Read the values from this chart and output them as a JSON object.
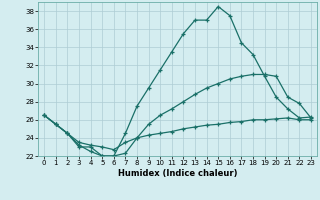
{
  "xlabel": "Humidex (Indice chaleur)",
  "bg_color": "#d4edf0",
  "grid_color": "#aecdd4",
  "line_color": "#1a7068",
  "xlim_min": -0.5,
  "xlim_max": 23.5,
  "ylim_min": 22,
  "ylim_max": 39,
  "xticks": [
    0,
    1,
    2,
    3,
    4,
    5,
    6,
    7,
    8,
    9,
    10,
    11,
    12,
    13,
    14,
    15,
    16,
    17,
    18,
    19,
    20,
    21,
    22,
    23
  ],
  "yticks": [
    22,
    24,
    26,
    28,
    30,
    32,
    34,
    36,
    38
  ],
  "line1_x": [
    0,
    1,
    2,
    3,
    4,
    5,
    6,
    7,
    8,
    9,
    10,
    11,
    12,
    13,
    14,
    15,
    16,
    17,
    18,
    19,
    20,
    21,
    22,
    23
  ],
  "line1_y": [
    26.5,
    25.5,
    24.5,
    23.0,
    23.0,
    22.0,
    22.0,
    24.5,
    27.5,
    29.5,
    31.5,
    33.5,
    35.5,
    37.0,
    37.0,
    38.5,
    37.5,
    34.5,
    33.2,
    30.8,
    28.5,
    27.2,
    26.2,
    26.3
  ],
  "line2_x": [
    0,
    1,
    2,
    3,
    4,
    5,
    6,
    7,
    8,
    9,
    10,
    11,
    12,
    13,
    14,
    15,
    16,
    17,
    18,
    19,
    20,
    21,
    22,
    23
  ],
  "line2_y": [
    26.5,
    25.5,
    24.5,
    23.2,
    22.5,
    22.0,
    22.0,
    22.3,
    24.0,
    25.5,
    26.5,
    27.2,
    28.0,
    28.8,
    29.5,
    30.0,
    30.5,
    30.8,
    31.0,
    31.0,
    30.8,
    28.5,
    27.8,
    26.2
  ],
  "line3_x": [
    0,
    1,
    2,
    3,
    4,
    5,
    6,
    7,
    8,
    9,
    10,
    11,
    12,
    13,
    14,
    15,
    16,
    17,
    18,
    19,
    20,
    21,
    22,
    23
  ],
  "line3_y": [
    26.5,
    25.5,
    24.5,
    23.5,
    23.2,
    23.0,
    22.7,
    23.5,
    24.0,
    24.3,
    24.5,
    24.7,
    25.0,
    25.2,
    25.4,
    25.5,
    25.7,
    25.8,
    26.0,
    26.0,
    26.1,
    26.2,
    26.0,
    26.0
  ]
}
